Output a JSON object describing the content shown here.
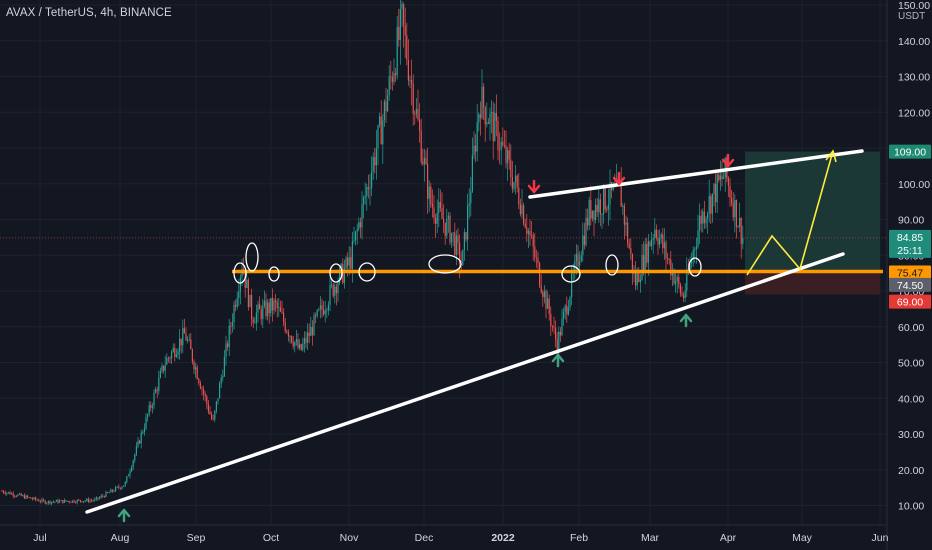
{
  "header": {
    "title": "AVAX / TetherUS, 4h, BINANCE",
    "currency": "USDT"
  },
  "colors": {
    "background": "#131722",
    "up": "#26a69a",
    "down": "#ef5350",
    "support": "#ff9800",
    "trendline": "#ffffff",
    "projection": "#ffeb3b",
    "target_zone": "#1c3a38",
    "stop_zone": "#3b1f24",
    "up_arrow": "#3fa37d",
    "down_arrow": "#f23645"
  },
  "price_labels": {
    "target": "109.00",
    "current": "84.85",
    "countdown": "25:11",
    "support": "75.47",
    "level": "74.50",
    "stop": "69.00"
  },
  "chart_data": {
    "type": "candlestick",
    "title": "AVAX / TetherUS, 4h, BINANCE",
    "y_axis": {
      "unit": "USDT",
      "ticks": [
        10,
        20,
        30,
        40,
        50,
        60,
        70,
        80,
        90,
        100,
        110,
        120,
        130,
        140,
        150
      ],
      "ylim": [
        6,
        150
      ]
    },
    "x_axis": {
      "ticks": [
        "Jul",
        "Aug",
        "Sep",
        "Oct",
        "Nov",
        "Dec",
        "2022",
        "Feb",
        "Mar",
        "Apr",
        "May",
        "Jun"
      ]
    },
    "price_path": [
      {
        "x": "Jul",
        "y": 14
      },
      {
        "x": "Jul mid",
        "y": 11
      },
      {
        "x": "Aug",
        "y": 11.5
      },
      {
        "x": "Aug mid",
        "y": 16
      },
      {
        "x": "Aug late",
        "y": 50
      },
      {
        "x": "Sep early",
        "y": 58
      },
      {
        "x": "Sep mid",
        "y": 33
      },
      {
        "x": "Sep late",
        "y": 78
      },
      {
        "x": "Oct early",
        "y": 63
      },
      {
        "x": "Oct",
        "y": 66
      },
      {
        "x": "Oct mid",
        "y": 53
      },
      {
        "x": "Oct late",
        "y": 72
      },
      {
        "x": "Nov",
        "y": 78
      },
      {
        "x": "Nov mid",
        "y": 117
      },
      {
        "x": "Nov late",
        "y": 145
      },
      {
        "x": "Dec early",
        "y": 95
      },
      {
        "x": "Dec",
        "y": 86
      },
      {
        "x": "Dec mid",
        "y": 77
      },
      {
        "x": "Dec late",
        "y": 124
      },
      {
        "x": "2022",
        "y": 113
      },
      {
        "x": "Jan mid",
        "y": 96
      },
      {
        "x": "Jan late",
        "y": 55
      },
      {
        "x": "Feb early",
        "y": 93
      },
      {
        "x": "Feb mid",
        "y": 98
      },
      {
        "x": "Feb late",
        "y": 72
      },
      {
        "x": "Mar early",
        "y": 88
      },
      {
        "x": "Mar mid",
        "y": 68
      },
      {
        "x": "Mar late",
        "y": 90
      },
      {
        "x": "Apr early",
        "y": 103
      },
      {
        "x": "Apr",
        "y": 84.85
      }
    ],
    "annotations": {
      "support_line": 75.47,
      "target": 109.0,
      "current_price": 84.85,
      "level": 74.5,
      "stop_loss": 69.0
    }
  }
}
